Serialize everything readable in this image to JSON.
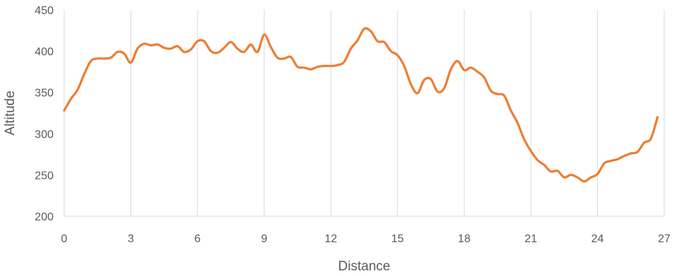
{
  "chart_data": {
    "type": "line",
    "title": "",
    "xlabel": "Distance",
    "ylabel": "Altitude",
    "xlim": [
      0,
      27
    ],
    "ylim": [
      200,
      450
    ],
    "xticks": [
      "0",
      "3",
      "6",
      "9",
      "12",
      "15",
      "18",
      "21",
      "24",
      "27"
    ],
    "yticks": [
      "200",
      "250",
      "300",
      "350",
      "400",
      "450"
    ],
    "grid": "vertical",
    "legend": "none",
    "series": [
      {
        "color": "#ED7D31",
        "x": [
          0,
          0.3,
          0.6,
          0.9,
          1.2,
          1.5,
          1.8,
          2.1,
          2.4,
          2.7,
          3.0,
          3.3,
          3.6,
          3.9,
          4.2,
          4.5,
          4.8,
          5.1,
          5.4,
          5.7,
          6.0,
          6.3,
          6.6,
          6.9,
          7.2,
          7.5,
          7.8,
          8.1,
          8.4,
          8.7,
          9.0,
          9.3,
          9.6,
          9.9,
          10.2,
          10.5,
          10.8,
          11.1,
          11.4,
          11.7,
          12.0,
          12.3,
          12.6,
          12.9,
          13.2,
          13.5,
          13.8,
          14.1,
          14.4,
          14.7,
          15.0,
          15.3,
          15.6,
          15.9,
          16.2,
          16.5,
          16.8,
          17.1,
          17.4,
          17.7,
          18.0,
          18.3,
          18.6,
          18.9,
          19.2,
          19.5,
          19.8,
          20.1,
          20.4,
          20.7,
          21.0,
          21.3,
          21.6,
          21.9,
          22.2,
          22.5,
          22.8,
          23.1,
          23.4,
          23.7,
          24.0,
          24.3,
          24.6,
          24.9,
          25.2,
          25.5,
          25.8,
          26.1,
          26.4,
          26.7
        ],
        "y": [
          328,
          342,
          353,
          372,
          388,
          391,
          391,
          392,
          399,
          397,
          386,
          403,
          409,
          407,
          408,
          404,
          403,
          406,
          399,
          402,
          412,
          412,
          400,
          398,
          404,
          411,
          403,
          399,
          408,
          399,
          420,
          405,
          392,
          391,
          393,
          381,
          380,
          378,
          381,
          382,
          382,
          383,
          387,
          403,
          413,
          427,
          424,
          412,
          411,
          400,
          395,
          382,
          360,
          349,
          365,
          366,
          351,
          355,
          378,
          388,
          377,
          380,
          375,
          368,
          352,
          348,
          346,
          328,
          313,
          293,
          279,
          268,
          262,
          254,
          255,
          247,
          250,
          247,
          242,
          247,
          251,
          264,
          267,
          269,
          273,
          276,
          278,
          289,
          294,
          320
        ]
      }
    ]
  }
}
